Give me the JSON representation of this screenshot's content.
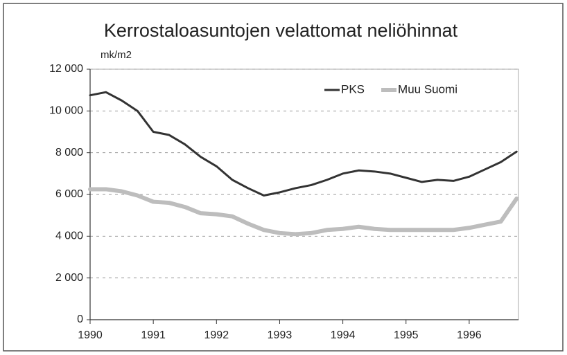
{
  "chart_data": {
    "type": "line",
    "title": "Kerrostaloasuntojen velattomat neliöhinnat",
    "ylabel": "mk/m2",
    "x": [
      1990,
      1990.25,
      1990.5,
      1990.75,
      1991,
      1991.25,
      1991.5,
      1991.75,
      1992,
      1992.25,
      1992.5,
      1992.75,
      1993,
      1993.25,
      1993.5,
      1993.75,
      1994,
      1994.25,
      1994.5,
      1994.75,
      1995,
      1995.25,
      1995.5,
      1995.75,
      1996,
      1996.25,
      1996.5,
      1996.75
    ],
    "series": [
      {
        "name": "PKS",
        "color": "#333333",
        "values": [
          10750,
          10900,
          10500,
          10000,
          9000,
          8850,
          8400,
          7800,
          7350,
          6700,
          6300,
          5950,
          6100,
          6300,
          6450,
          6700,
          7000,
          7150,
          7100,
          7000,
          6800,
          6600,
          6700,
          6650,
          6850,
          7200,
          7550,
          8050
        ]
      },
      {
        "name": "Muu Suomi",
        "color": "#bdbdbd",
        "values": [
          6250,
          6250,
          6150,
          5950,
          5650,
          5600,
          5400,
          5100,
          5050,
          4950,
          4600,
          4300,
          4150,
          4100,
          4150,
          4300,
          4350,
          4450,
          4350,
          4300,
          4300,
          4300,
          4300,
          4300,
          4400,
          4550,
          4700,
          5800
        ]
      }
    ],
    "xlim": [
      1990,
      1996.78
    ],
    "xticks": [
      1990,
      1991,
      1992,
      1993,
      1994,
      1995,
      1996
    ],
    "ylim": [
      0,
      12000
    ],
    "yticks": [
      0,
      {
        "value": 2000,
        "label": "2 000"
      },
      {
        "value": 4000,
        "label": "4 000"
      },
      {
        "value": 6000,
        "label": "6 000"
      },
      {
        "value": 8000,
        "label": "8 000"
      },
      {
        "value": 10000,
        "label": "10 000"
      },
      {
        "value": 12000,
        "label": "12 000"
      }
    ],
    "grid": true,
    "legend": "upper right"
  }
}
